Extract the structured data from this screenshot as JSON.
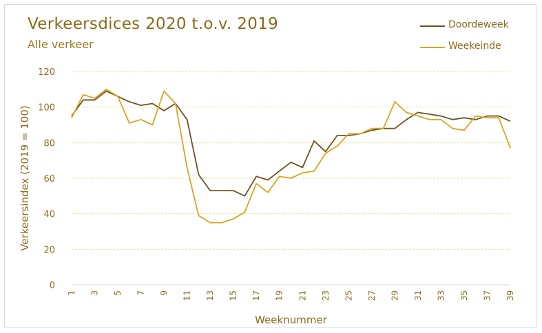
{
  "chart_data": {
    "type": "line",
    "title": "Verkeersdices 2020 t.o.v. 2019",
    "subtitle": "Alle verkeer",
    "xlabel": "Weeknummer",
    "ylabel": "Verkeersindex (2019 = 100)",
    "ylim": [
      0,
      120
    ],
    "yticks": [
      0,
      20,
      40,
      60,
      80,
      100,
      120
    ],
    "xlim": [
      1,
      39
    ],
    "xticks": [
      1,
      3,
      5,
      7,
      9,
      11,
      13,
      15,
      17,
      19,
      21,
      23,
      25,
      27,
      29,
      31,
      33,
      35,
      37,
      39
    ],
    "grid": true,
    "legend_position": "top-right",
    "x": [
      1,
      2,
      3,
      4,
      5,
      6,
      7,
      8,
      9,
      10,
      11,
      12,
      13,
      14,
      15,
      16,
      17,
      18,
      19,
      20,
      21,
      22,
      23,
      24,
      25,
      26,
      27,
      28,
      29,
      30,
      31,
      32,
      33,
      34,
      35,
      36,
      37,
      38,
      39
    ],
    "series": [
      {
        "name": "Doordeweek",
        "color": "#6e5220",
        "values": [
          95,
          104,
          104,
          109,
          106,
          103,
          101,
          102,
          98,
          102,
          93,
          62,
          53,
          53,
          53,
          50,
          61,
          59,
          64,
          69,
          66,
          81,
          75,
          84,
          84,
          85,
          87,
          88,
          88,
          93,
          97,
          96,
          95,
          93,
          94,
          93,
          95,
          95,
          92
        ]
      },
      {
        "name": "Weekeinde",
        "color": "#d9a520",
        "values": [
          94,
          107,
          105,
          110,
          106,
          91,
          93,
          90,
          109,
          102,
          66,
          39,
          35,
          35,
          37,
          41,
          57,
          52,
          61,
          60,
          63,
          64,
          74,
          78,
          85,
          85,
          88,
          88,
          103,
          97,
          95,
          93,
          93,
          88,
          87,
          95,
          94,
          94,
          77
        ]
      }
    ]
  }
}
